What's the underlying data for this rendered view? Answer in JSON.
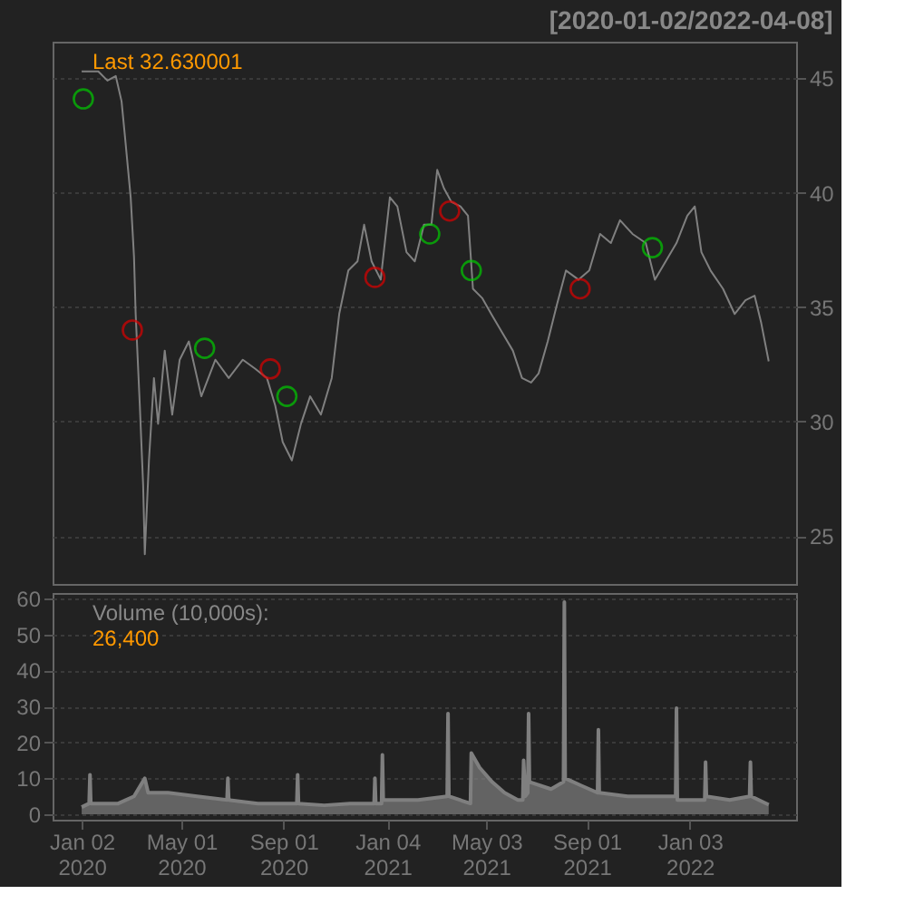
{
  "chart_data": [
    {
      "type": "line",
      "title": "[2020-01-02/2022-04-08]",
      "annotations": [
        "Last 32.630001"
      ],
      "xlim": [
        "2019-11-28",
        "2022-05-11"
      ],
      "ylim": [
        22.9,
        46.6
      ],
      "yticks": [
        25,
        30,
        35,
        40,
        45
      ],
      "grid": "y",
      "tick_labels": "y",
      "series": [
        {
          "type": "line",
          "color": "#808080",
          "marker": "none",
          "x": [
            "2020-01-02",
            "2020-01-22",
            "2020-02-02",
            "2020-02-12",
            "2020-02-19",
            "2020-02-23",
            "2020-03-01",
            "2020-03-05",
            "2020-03-07",
            "2020-03-12",
            "2020-03-16",
            "2020-03-18",
            "2020-03-23",
            "2020-03-29",
            "2020-04-03",
            "2020-04-11",
            "2020-04-20",
            "2020-04-29",
            "2020-05-10",
            "2020-05-25",
            "2020-06-11",
            "2020-06-27",
            "2020-07-14",
            "2020-07-29",
            "2020-08-12",
            "2020-08-22",
            "2020-08-31",
            "2020-09-11",
            "2020-09-22",
            "2020-10-03",
            "2020-10-16",
            "2020-10-29",
            "2020-11-07",
            "2020-11-18",
            "2020-11-29",
            "2020-12-07",
            "2020-12-16",
            "2020-12-27",
            "2021-01-07",
            "2021-01-16",
            "2021-01-27",
            "2021-02-06",
            "2021-02-17",
            "2021-02-26",
            "2021-03-05",
            "2021-03-13",
            "2021-03-22",
            "2021-04-02",
            "2021-04-11",
            "2021-04-17",
            "2021-04-28",
            "2021-05-09",
            "2021-05-22",
            "2021-06-04",
            "2021-06-15",
            "2021-06-26",
            "2021-07-05",
            "2021-07-16",
            "2021-07-27",
            "2021-08-07",
            "2021-08-22",
            "2021-09-04",
            "2021-09-17",
            "2021-09-30",
            "2021-10-11",
            "2021-10-26",
            "2021-11-11",
            "2021-11-22",
            "2021-12-05",
            "2021-12-18",
            "2021-12-31",
            "2022-01-09",
            "2022-01-17",
            "2022-01-28",
            "2022-02-12",
            "2022-02-26",
            "2022-03-11",
            "2022-03-22",
            "2022-03-30",
            "2022-04-08"
          ],
          "values": [
            45.3,
            45.3,
            44.9,
            45.1,
            44.0,
            42.5,
            39.8,
            37.2,
            34.7,
            30.7,
            27.2,
            24.2,
            28.3,
            31.9,
            29.9,
            33.1,
            30.3,
            32.7,
            33.5,
            31.1,
            32.7,
            31.9,
            32.7,
            32.3,
            31.9,
            30.7,
            29.1,
            28.3,
            29.9,
            31.1,
            30.3,
            31.9,
            34.7,
            36.6,
            37.0,
            38.6,
            37.0,
            36.2,
            39.8,
            39.4,
            37.4,
            37.0,
            38.6,
            38.6,
            41.0,
            40.2,
            39.6,
            39.4,
            39.0,
            35.8,
            35.4,
            34.7,
            33.9,
            33.1,
            31.9,
            31.7,
            32.1,
            33.5,
            35.1,
            36.6,
            36.2,
            36.6,
            38.2,
            37.8,
            38.8,
            38.2,
            37.8,
            36.2,
            37.0,
            37.8,
            39.0,
            39.4,
            37.4,
            36.6,
            35.8,
            34.7,
            35.3,
            35.5,
            34.3,
            32.63
          ]
        },
        {
          "type": "scatter",
          "color": "#00cc00",
          "marker": "circle",
          "x": [
            "2020-01-04",
            "2020-05-29",
            "2020-09-05",
            "2021-02-24",
            "2021-04-15",
            "2021-11-19"
          ],
          "values": [
            44.1,
            33.2,
            31.1,
            38.2,
            36.6,
            37.6
          ]
        },
        {
          "type": "scatter",
          "color": "#dd0000",
          "marker": "circle",
          "x": [
            "2020-03-03",
            "2020-08-16",
            "2020-12-20",
            "2021-03-20",
            "2021-08-24"
          ],
          "values": [
            34.0,
            32.3,
            36.3,
            39.2,
            35.8
          ]
        }
      ]
    },
    {
      "type": "area",
      "annotations": [
        "Volume (10,000s):",
        "26,400"
      ],
      "xlim": [
        "2019-11-28",
        "2022-05-11"
      ],
      "ylim": [
        -1.5,
        61.5
      ],
      "yticks": [
        0,
        10,
        20,
        30,
        40,
        50,
        60
      ],
      "grid": "y",
      "xticks": [
        {
          "value": "2020-01-02",
          "label": "Jan 02\n2020"
        },
        {
          "value": "2020-05-01",
          "label": "May 01\n2020"
        },
        {
          "value": "2020-09-01",
          "label": "Sep 01\n2020"
        },
        {
          "value": "2021-01-04",
          "label": "Jan 04\n2021"
        },
        {
          "value": "2021-05-03",
          "label": "May 03\n2021"
        },
        {
          "value": "2021-09-01",
          "label": "Sep 01\n2021"
        },
        {
          "value": "2022-01-03",
          "label": "Jan 03\n2022"
        }
      ],
      "series": [
        {
          "color": "#7f7f7f",
          "x": [
            "2020-01-02",
            "2020-01-11",
            "2020-01-12",
            "2020-01-13",
            "2020-02-15",
            "2020-03-05",
            "2020-03-18",
            "2020-03-22",
            "2020-04-15",
            "2020-05-20",
            "2020-06-25",
            "2020-06-26",
            "2020-06-27",
            "2020-08-01",
            "2020-09-17",
            "2020-09-18",
            "2020-09-19",
            "2020-10-20",
            "2020-11-20",
            "2020-12-19",
            "2020-12-20",
            "2020-12-21",
            "2020-12-28",
            "2020-12-29",
            "2020-12-30",
            "2021-02-10",
            "2021-03-17",
            "2021-03-18",
            "2021-03-19",
            "2021-04-14",
            "2021-04-15",
            "2021-04-25",
            "2021-05-10",
            "2021-05-25",
            "2021-06-10",
            "2021-06-16",
            "2021-06-17",
            "2021-06-19",
            "2021-06-22",
            "2021-06-23",
            "2021-06-24",
            "2021-07-20",
            "2021-08-04",
            "2021-08-05",
            "2021-08-06",
            "2021-08-25",
            "2021-09-14",
            "2021-09-15",
            "2021-09-16",
            "2021-10-20",
            "2021-12-17",
            "2021-12-18",
            "2021-12-19",
            "2022-01-21",
            "2022-01-22",
            "2022-01-23",
            "2022-02-20",
            "2022-03-16",
            "2022-03-17",
            "2022-03-18",
            "2022-04-08"
          ],
          "values": [
            2,
            3,
            11,
            3,
            3,
            5,
            10,
            6,
            6,
            5,
            4,
            10,
            4,
            3,
            3,
            11,
            3,
            2.5,
            3,
            3,
            10,
            3,
            3,
            16.5,
            4,
            4,
            5,
            28,
            5,
            3,
            17,
            13,
            9,
            6,
            4,
            4,
            15,
            5,
            6,
            28,
            9,
            7,
            9,
            59,
            10,
            8,
            6,
            23.5,
            6,
            5,
            5,
            29.5,
            4,
            4,
            14.5,
            5,
            4,
            5,
            14.5,
            5,
            2.64
          ]
        }
      ]
    }
  ]
}
